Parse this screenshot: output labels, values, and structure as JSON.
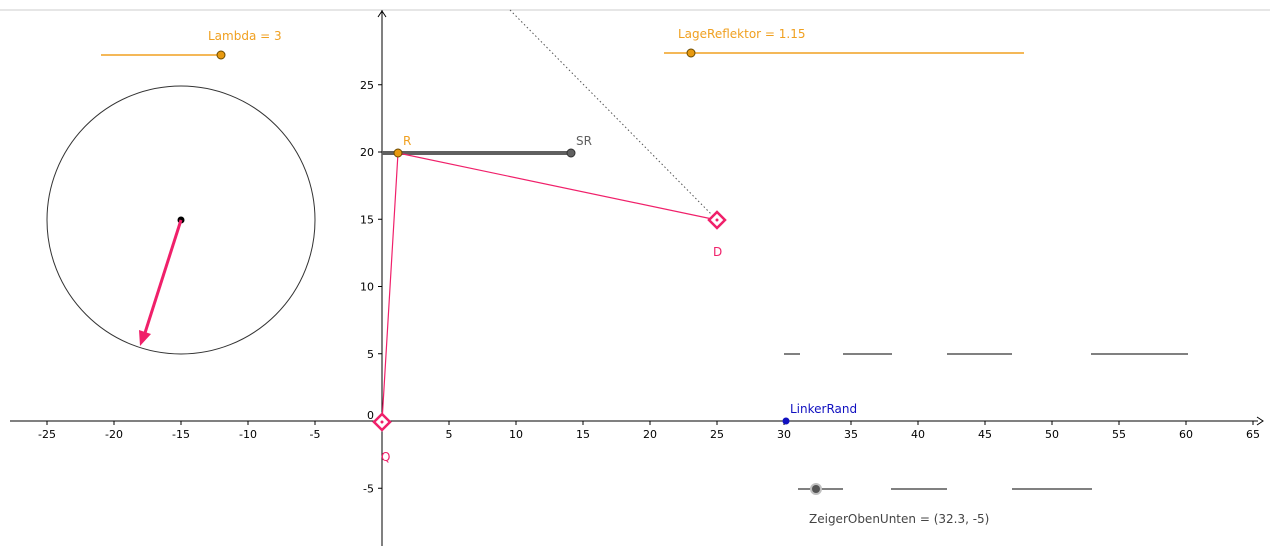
{
  "colors": {
    "axis": "#000000",
    "slider": "#f0a020",
    "slider_knob": "#e89a10",
    "pink": "#f0206a",
    "gray_segment": "#606060",
    "blue_point": "#1010c0",
    "circle": "#333333",
    "dotted": "#555555"
  },
  "sliders": {
    "lambda": {
      "label": "Lambda = 3"
    },
    "lage_reflektor": {
      "label": "LageReflektor = 1.15"
    }
  },
  "axes": {
    "x_ticks": [
      "-25",
      "-20",
      "-15",
      "-10",
      "-5",
      "0",
      "5",
      "10",
      "15",
      "20",
      "25",
      "30",
      "35",
      "40",
      "45",
      "50",
      "55",
      "60",
      "65"
    ],
    "y_ticks": [
      "-5",
      "5",
      "10",
      "15",
      "20",
      "25"
    ],
    "origin_label": "0"
  },
  "points": {
    "R": "R",
    "SR": "SR",
    "D": "D",
    "Q": "Q",
    "linker_rand": "LinkerRand",
    "zeiger": "ZeigerObenUnten = (32.3, -5)"
  },
  "icons": {
    "diamond_point": "diamond-point-icon",
    "dot_point": "dot-point-icon"
  }
}
